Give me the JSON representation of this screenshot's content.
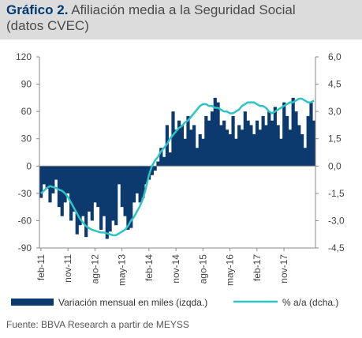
{
  "header": {
    "label": "Gráfico 2.",
    "title": "Afiliación media a la Seguridad Social",
    "subtitle": "(datos CVEC)"
  },
  "source": "Fuente: BBVA Research a partir de MEYSS",
  "colors": {
    "bars": "#0d3a6e",
    "line": "#2ec4c4",
    "axis": "#888888",
    "header_bg": "#dcdcdc"
  },
  "chart_data": {
    "type": "bar",
    "x_ticks": [
      "feb-11",
      "nov-11",
      "ago-12",
      "may-13",
      "feb-14",
      "nov-14",
      "ago-15",
      "may-16",
      "feb-17",
      "nov-17"
    ],
    "y_left": {
      "ticks": [
        "120",
        "90",
        "60",
        "30",
        "0",
        "-30",
        "-60",
        "-90"
      ],
      "lim": [
        -90,
        120
      ]
    },
    "y_right": {
      "ticks": [
        "6,0",
        "4,5",
        "3,0",
        "1,5",
        "0,0",
        "-1,5",
        "-3,0",
        "-4,5"
      ],
      "lim": [
        -4.5,
        6.0
      ]
    },
    "legend": {
      "bars": "Variación mensual en miles (izqda.)",
      "line": "% a/a (dcha.)",
      "position": "bottom"
    },
    "series": [
      {
        "name": "Variación mensual en miles (izqda.)",
        "type": "bar",
        "axis": "left",
        "values": [
          -35,
          -20,
          -25,
          -40,
          -30,
          -15,
          -45,
          -55,
          -40,
          -30,
          -60,
          -50,
          -75,
          -65,
          -55,
          -78,
          -50,
          -60,
          -40,
          -45,
          -70,
          -55,
          -80,
          -72,
          -60,
          -65,
          -20,
          -45,
          -55,
          -70,
          -68,
          -40,
          -30,
          -40,
          -35,
          -20,
          -15,
          -10,
          -5,
          5,
          20,
          10,
          45,
          15,
          60,
          40,
          50,
          45,
          30,
          55,
          40,
          45,
          20,
          35,
          30,
          55,
          50,
          60,
          75,
          70,
          45,
          50,
          40,
          35,
          55,
          30,
          45,
          40,
          60,
          50,
          45,
          35,
          50,
          40,
          55,
          45,
          60,
          50,
          65,
          45,
          30,
          70,
          55,
          40,
          75,
          60,
          45,
          35,
          20,
          55,
          70,
          50
        ]
      },
      {
        "name": "% a/a (dcha.)",
        "type": "line",
        "axis": "right",
        "values": [
          -1.5,
          -1.35,
          -1.2,
          -1.1,
          -1.15,
          -1.2,
          -1.3,
          -1.35,
          -1.5,
          -1.7,
          -2.0,
          -2.3,
          -2.6,
          -2.9,
          -3.1,
          -3.3,
          -3.4,
          -3.5,
          -3.55,
          -3.6,
          -3.65,
          -3.65,
          -3.7,
          -3.75,
          -3.8,
          -3.8,
          -3.7,
          -3.6,
          -3.5,
          -3.3,
          -3.0,
          -2.8,
          -2.5,
          -2.2,
          -1.8,
          -1.2,
          -0.5,
          0.0,
          0.3,
          0.5,
          0.8,
          1.0,
          1.2,
          1.5,
          1.7,
          1.9,
          2.1,
          2.2,
          2.4,
          2.5,
          2.7,
          2.9,
          3.1,
          3.3,
          3.4,
          3.4,
          3.3,
          3.3,
          3.2,
          3.2,
          3.1,
          3.0,
          3.0,
          2.9,
          2.9,
          3.0,
          3.1,
          3.3,
          3.4,
          3.5,
          3.5,
          3.5,
          3.4,
          3.3,
          3.3,
          3.2,
          3.0,
          2.9,
          3.0,
          3.1,
          3.2,
          3.3,
          3.4,
          3.5,
          3.5,
          3.6,
          3.7,
          3.7,
          3.6,
          3.5,
          3.5,
          3.6
        ]
      }
    ]
  }
}
